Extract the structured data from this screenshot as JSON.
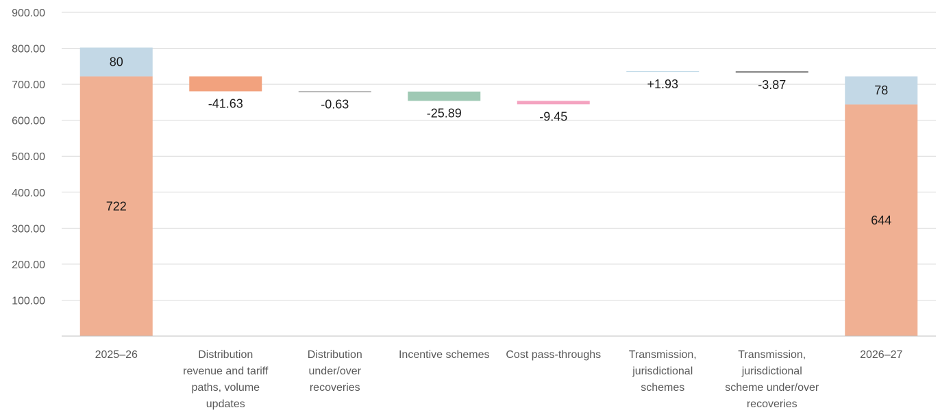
{
  "chart_data": {
    "type": "bar",
    "subtype": "waterfall",
    "title": "",
    "xlabel": "",
    "ylabel": "",
    "ylim": [
      0,
      900
    ],
    "yticks": [
      100,
      200,
      300,
      400,
      500,
      600,
      700,
      800,
      900
    ],
    "ytick_labels": [
      "100.00",
      "200.00",
      "300.00",
      "400.00",
      "500.00",
      "600.00",
      "700.00",
      "800.00",
      "900.00"
    ],
    "grid": true,
    "legend": "none",
    "categories": [
      [
        "2025–26"
      ],
      [
        "Distribution",
        "revenue and tariff",
        "paths, volume",
        "updates"
      ],
      [
        "Distribution",
        "under/over",
        "recoveries"
      ],
      [
        "Incentive schemes"
      ],
      [
        "Cost pass-throughs"
      ],
      [
        "Transmission,",
        "jurisdictional",
        "schemes"
      ],
      [
        "Transmission,",
        "jurisdictional",
        "scheme under/over",
        "recoveries"
      ],
      [
        "2026–27"
      ]
    ],
    "totals": [
      {
        "index": 0,
        "base": 722,
        "top": 80,
        "base_label": "722",
        "top_label": "80"
      },
      {
        "index": 7,
        "base": 644,
        "top": 78,
        "base_label": "644",
        "top_label": "78"
      }
    ],
    "steps": [
      {
        "index": 1,
        "start": 722,
        "end": 680.37,
        "label": "-41.63",
        "color": "#f2a27e"
      },
      {
        "index": 2,
        "start": 680.37,
        "end": 679.74,
        "label": "-0.63",
        "color": "#7f7f7f"
      },
      {
        "index": 3,
        "start": 679.74,
        "end": 653.85,
        "label": "-25.89",
        "color": "#9fc9b4"
      },
      {
        "index": 4,
        "start": 653.85,
        "end": 644.4,
        "label": "-9.45",
        "color": "#f4a3c0"
      },
      {
        "index": 5,
        "start": 734.2,
        "end": 736.13,
        "label": "+1.93",
        "color": "#bcd7e6"
      },
      {
        "index": 6,
        "start": 736.13,
        "end": 732.26,
        "label": "-3.87",
        "color": "#7f7f7f"
      }
    ],
    "colors": {
      "base": "#f0b093",
      "top": "#c3d8e6",
      "grid": "#d9d9d9",
      "axis": "#bfbfbf"
    }
  }
}
